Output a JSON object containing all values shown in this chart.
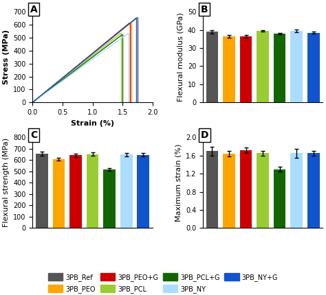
{
  "colors": {
    "3PB_Ref": "#555555",
    "3PB_PEO": "#FFA500",
    "3PB_PEO+G": "#CC0000",
    "3PB_PCL": "#99CC33",
    "3PB_PCL+G": "#116600",
    "3PB_NY": "#AADDFF",
    "3PB_NY+G": "#1155CC"
  },
  "labels": [
    "3PB_Ref",
    "3PB_PEO",
    "3PB_PEO+G",
    "3PB_PCL",
    "3PB_PCL+G",
    "3PB_NY",
    "3PB_NY+G"
  ],
  "flexural_modulus": {
    "values": [
      39.0,
      36.5,
      36.5,
      39.5,
      38.0,
      39.5,
      38.5
    ],
    "errors": [
      1.0,
      0.8,
      0.8,
      0.5,
      0.5,
      0.8,
      0.5
    ]
  },
  "flexural_strength": {
    "values": [
      655,
      608,
      643,
      652,
      515,
      648,
      645
    ],
    "errors": [
      18,
      15,
      15,
      15,
      12,
      15,
      15
    ]
  },
  "max_strain": {
    "values": [
      1.7,
      1.64,
      1.72,
      1.65,
      1.3,
      1.65,
      1.65
    ],
    "errors": [
      0.1,
      0.06,
      0.06,
      0.05,
      0.05,
      0.1,
      0.05
    ]
  },
  "stress_strain": {
    "line_colors": [
      "#555555",
      "#FFA500",
      "#CC0000",
      "#99CC33",
      "#116600",
      "#AADDFF",
      "#1155CC"
    ],
    "strain_end": [
      1.75,
      1.65,
      1.62,
      1.48,
      1.5,
      1.6,
      1.73
    ],
    "stress_end": [
      657,
      620,
      615,
      537,
      525,
      535,
      653
    ],
    "drop_to": [
      0,
      415,
      0,
      350,
      0,
      500,
      0
    ]
  },
  "panel_label_fontsize": 10,
  "axis_label_fontsize": 8,
  "tick_fontsize": 7,
  "legend_fontsize": 7,
  "background_color": "#FFFFFF"
}
